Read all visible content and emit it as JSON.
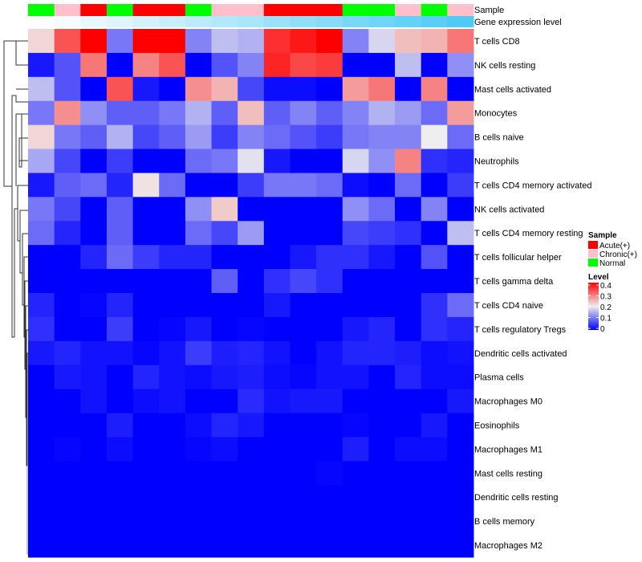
{
  "chart_data": {
    "type": "heatmap",
    "title": "",
    "annotation_labels": {
      "sample": "Sample",
      "gene_level": "Gene expression level"
    },
    "columns": 17,
    "sample_groups": [
      "Normal",
      "Chronic(+)",
      "Acute(+)",
      "Normal",
      "Acute(+)",
      "Acute(+)",
      "Normal",
      "Chronic(+)",
      "Chronic(+)",
      "Acute(+)",
      "Acute(+)",
      "Acute(+)",
      "Normal",
      "Normal",
      "Chronic(+)",
      "Normal",
      "Chronic(+)"
    ],
    "gene_expression_level": [
      0.0,
      0.06,
      0.12,
      0.18,
      0.24,
      0.3,
      0.36,
      0.42,
      0.48,
      0.54,
      0.6,
      0.66,
      0.72,
      0.78,
      0.84,
      0.9,
      0.96
    ],
    "rows": [
      "T cells CD8",
      "NK cells resting",
      "Mast cells activated",
      "Monocytes",
      "B cells naive",
      "Neutrophils",
      "T cells CD4 memory activated",
      "NK cells activated",
      "T cells CD4 memory resting",
      "T cells follicular helper",
      "T cells gamma delta",
      "T cells CD4 naive",
      "T cells regulatory  Tregs",
      "Dendritic cells activated",
      "Plasma cells",
      "Macrophages M0",
      "Eosinophils",
      "Macrophages M1",
      "Mast cells resting",
      "Dendritic cells resting",
      "B cells memory",
      "Macrophages M2"
    ],
    "values": [
      [
        0.22,
        0.33,
        0.4,
        0.1,
        0.4,
        0.4,
        0.11,
        0.16,
        0.15,
        0.36,
        0.38,
        0.4,
        0.11,
        0.18,
        0.24,
        0.25,
        0.3
      ],
      [
        0.02,
        0.07,
        0.3,
        0,
        0.29,
        0.33,
        0,
        0.07,
        0.11,
        0.37,
        0.34,
        0.35,
        0,
        0,
        0.16,
        0,
        0.12
      ],
      [
        0.16,
        0.07,
        0,
        0.33,
        0.02,
        0,
        0.28,
        0.25,
        0.06,
        0.01,
        0.01,
        0,
        0.27,
        0.3,
        0,
        0.29,
        0
      ],
      [
        0.1,
        0.28,
        0.12,
        0.08,
        0.08,
        0.1,
        0.15,
        0.08,
        0.24,
        0.08,
        0.11,
        0.08,
        0.11,
        0.15,
        0.13,
        0.09,
        0.27
      ],
      [
        0.22,
        0.1,
        0.08,
        0.15,
        0.06,
        0.08,
        0.13,
        0.05,
        0.11,
        0.09,
        0.07,
        0.05,
        0.1,
        0.11,
        0.11,
        0.2,
        0.09
      ],
      [
        0.14,
        0.06,
        0,
        0.05,
        0,
        0,
        0.09,
        0.1,
        0.19,
        0.02,
        0,
        0,
        0.18,
        0.12,
        0.29,
        0.04,
        0.03
      ],
      [
        0.02,
        0.08,
        0.09,
        0.03,
        0.21,
        0.09,
        0,
        0,
        0.05,
        0.1,
        0.1,
        0.09,
        0.01,
        0,
        0.09,
        0,
        0.05
      ],
      [
        0.1,
        0.06,
        0,
        0.08,
        0,
        0,
        0.12,
        0.23,
        0,
        0,
        0,
        0,
        0.12,
        0.09,
        0,
        0.11,
        0
      ],
      [
        0.09,
        0.03,
        0,
        0.08,
        0,
        0,
        0.09,
        0.06,
        0.13,
        0,
        0,
        0,
        0.06,
        0.05,
        0.04,
        0,
        0.16
      ],
      [
        0,
        0,
        0.03,
        0.09,
        0.05,
        0.03,
        0.03,
        0,
        0,
        0,
        0.02,
        0.04,
        0.04,
        0.02,
        0,
        0.07,
        0
      ],
      [
        0,
        0,
        0,
        0,
        0,
        0,
        0,
        0.08,
        0,
        0.04,
        0.06,
        0.04,
        0,
        0,
        0,
        0,
        0
      ],
      [
        0.03,
        0,
        0.005,
        0.03,
        0,
        0,
        0,
        0,
        0,
        0.02,
        0,
        0,
        0,
        0,
        0,
        0.04,
        0.09
      ],
      [
        0.04,
        0,
        0,
        0.05,
        0,
        0.005,
        0.02,
        0,
        0.005,
        0,
        0,
        0,
        0.02,
        0.03,
        0,
        0.04,
        0.03
      ],
      [
        0.02,
        0.03,
        0.015,
        0.015,
        0.005,
        0.015,
        0.05,
        0.025,
        0.03,
        0.015,
        0,
        0.015,
        0.03,
        0.03,
        0.025,
        0.01,
        0.015
      ],
      [
        0,
        0.02,
        0.015,
        0,
        0.03,
        0.015,
        0.01,
        0.02,
        0.025,
        0.01,
        0.005,
        0.015,
        0.015,
        0,
        0.03,
        0.01,
        0.01
      ],
      [
        0,
        0,
        0.015,
        0,
        0.01,
        0.015,
        0,
        0,
        0.035,
        0.015,
        0.02,
        0.02,
        0,
        0,
        0,
        0,
        0.02
      ],
      [
        0,
        0,
        0,
        0.025,
        0,
        0,
        0.01,
        0.03,
        0.02,
        0,
        0,
        0,
        0.005,
        0,
        0,
        0.02,
        0
      ],
      [
        0,
        0.005,
        0,
        0.01,
        0,
        0,
        0.005,
        0.01,
        0,
        0,
        0,
        0,
        0.025,
        0,
        0.01,
        0.01,
        0
      ],
      [
        0,
        0,
        0,
        0,
        0,
        0,
        0,
        0,
        0,
        0,
        0,
        0.005,
        0,
        0,
        0,
        0,
        0
      ],
      [
        0,
        0,
        0,
        0,
        0,
        0,
        0,
        0,
        0,
        0,
        0,
        0,
        0,
        0,
        0,
        0,
        0
      ],
      [
        0,
        0,
        0,
        0,
        0,
        0,
        0,
        0,
        0,
        0,
        0,
        0,
        0,
        0,
        0,
        0,
        0
      ],
      [
        0,
        0,
        0,
        0,
        0,
        0,
        0,
        0,
        0,
        0,
        0,
        0,
        0,
        0,
        0,
        0,
        0
      ]
    ],
    "color_scale": {
      "low": "#0000FF",
      "mid": "#EEEEEE",
      "high": "#FF0000",
      "range": [
        0,
        0.4
      ]
    },
    "legend": {
      "sample_title": "Sample",
      "sample_entries": [
        {
          "label": "Acute(+)",
          "color": "#FF0000"
        },
        {
          "label": "Chronic(+)",
          "color": "#FFC0CB"
        },
        {
          "label": "Normal",
          "color": "#00FF00"
        }
      ],
      "level_title": "Level",
      "level_ticks": [
        "0.4",
        "0.3",
        "0.2",
        "0.1",
        "0"
      ],
      "placement": "right"
    },
    "gene_level_colors": {
      "low": "#FFFFFF",
      "high": "#48C8F5"
    }
  }
}
